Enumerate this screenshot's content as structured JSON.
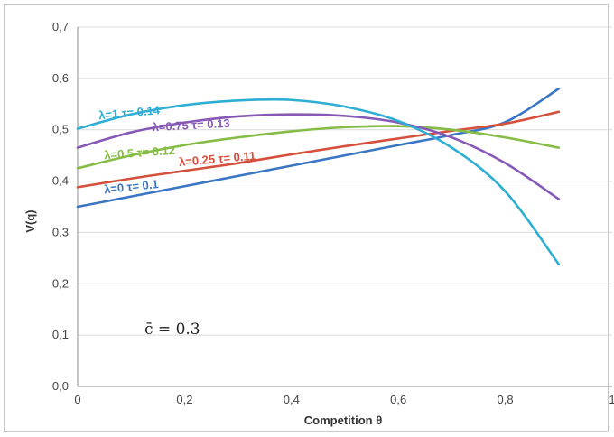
{
  "chart_data": {
    "type": "line",
    "title": "",
    "xlabel": "Competition θ",
    "ylabel": "V(q)",
    "xlim": [
      0,
      1
    ],
    "ylim": [
      0,
      0.7
    ],
    "x_tick_labels": [
      "0",
      "0,2",
      "0,4",
      "0,6",
      "0,8",
      "1"
    ],
    "y_tick_labels": [
      "0,0",
      "0,1",
      "0,2",
      "0,3",
      "0,4",
      "0,5",
      "0,6",
      "0,7"
    ],
    "grid": "horizontal",
    "annotation": "c̄ = 0.3",
    "series": [
      {
        "name": "λ=0 τ= 0.1",
        "color": "#3a76c4",
        "x": [
          0,
          0.1,
          0.2,
          0.3,
          0.4,
          0.5,
          0.6,
          0.7,
          0.8,
          0.9
        ],
        "values": [
          0.35,
          0.37,
          0.39,
          0.41,
          0.43,
          0.45,
          0.47,
          0.49,
          0.515,
          0.58
        ]
      },
      {
        "name": "λ=0.25 τ= 0.11",
        "color": "#d4503c",
        "x": [
          0,
          0.1,
          0.2,
          0.3,
          0.4,
          0.5,
          0.6,
          0.7,
          0.8,
          0.9
        ],
        "values": [
          0.388,
          0.405,
          0.42,
          0.435,
          0.452,
          0.468,
          0.483,
          0.498,
          0.512,
          0.535
        ]
      },
      {
        "name": "λ=0.5 τ= 0.12",
        "color": "#85bc46",
        "x": [
          0,
          0.1,
          0.2,
          0.3,
          0.4,
          0.5,
          0.6,
          0.7,
          0.8,
          0.9
        ],
        "values": [
          0.425,
          0.45,
          0.47,
          0.485,
          0.497,
          0.505,
          0.507,
          0.5,
          0.485,
          0.465
        ]
      },
      {
        "name": "λ=0.75 τ= 0.13",
        "color": "#8759b6",
        "x": [
          0,
          0.1,
          0.2,
          0.3,
          0.4,
          0.5,
          0.6,
          0.7,
          0.8,
          0.9
        ],
        "values": [
          0.465,
          0.495,
          0.514,
          0.526,
          0.53,
          0.527,
          0.514,
          0.485,
          0.435,
          0.365
        ]
      },
      {
        "name": "λ=1 τ= 0.14",
        "color": "#2eaed2",
        "x": [
          0,
          0.1,
          0.2,
          0.3,
          0.4,
          0.5,
          0.6,
          0.7,
          0.8,
          0.9
        ],
        "values": [
          0.502,
          0.53,
          0.548,
          0.557,
          0.558,
          0.545,
          0.517,
          0.465,
          0.38,
          0.238
        ]
      }
    ]
  }
}
